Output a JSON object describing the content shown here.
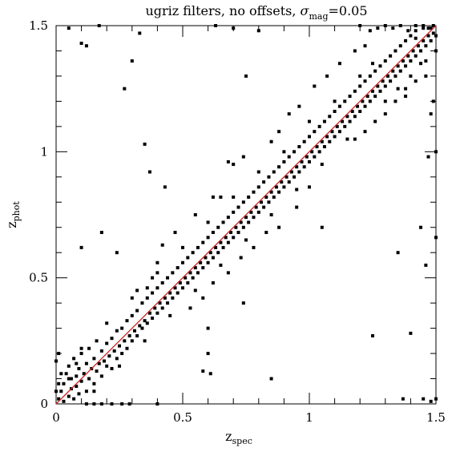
{
  "chart_data": {
    "type": "scatter",
    "title": {
      "prefix": "ugriz filters, no offsets, ",
      "sigma": "σ",
      "sigma_sub": "mag",
      "suffix": "=0.05"
    },
    "xlabel": {
      "main": "z",
      "sub": "spec"
    },
    "ylabel": {
      "main": "z",
      "sub": "phot"
    },
    "xlim": [
      0,
      1.5
    ],
    "ylim": [
      0,
      1.5
    ],
    "x_ticks": [
      {
        "value": 0,
        "label": "0"
      },
      {
        "value": 0.5,
        "label": "0.5"
      },
      {
        "value": 1,
        "label": "1"
      },
      {
        "value": 1.5,
        "label": "1.5"
      }
    ],
    "y_ticks": [
      {
        "value": 0,
        "label": "0"
      },
      {
        "value": 0.5,
        "label": "0.5"
      },
      {
        "value": 1,
        "label": "1"
      },
      {
        "value": 1.5,
        "label": "1.5"
      }
    ],
    "minor_tick_step": 0.1,
    "grid": false,
    "reference_line": {
      "from": [
        0,
        0
      ],
      "to": [
        1.5,
        1.5
      ],
      "color": "#cc2222"
    },
    "marker_color": "#000000",
    "points": [
      [
        0.01,
        0.02
      ],
      [
        0.02,
        0.05
      ],
      [
        0.03,
        0.01
      ],
      [
        0.03,
        0.08
      ],
      [
        0.04,
        0.12
      ],
      [
        0.05,
        0.03
      ],
      [
        0.05,
        0.15
      ],
      [
        0.06,
        0.06
      ],
      [
        0.06,
        0.1
      ],
      [
        0.07,
        0.02
      ],
      [
        0.07,
        0.18
      ],
      [
        0.08,
        0.07
      ],
      [
        0.08,
        0.11
      ],
      [
        0.09,
        0.04
      ],
      [
        0.09,
        0.14
      ],
      [
        0.1,
        0.09
      ],
      [
        0.1,
        0.2
      ],
      [
        0.11,
        0.12
      ],
      [
        0.12,
        0.05
      ],
      [
        0.12,
        0.16
      ],
      [
        0.13,
        0.1
      ],
      [
        0.13,
        0.22
      ],
      [
        0.14,
        0.14
      ],
      [
        0.15,
        0.08
      ],
      [
        0.15,
        0.18
      ],
      [
        0.16,
        0.13
      ],
      [
        0.16,
        0.25
      ],
      [
        0.17,
        0.16
      ],
      [
        0.18,
        0.11
      ],
      [
        0.18,
        0.21
      ],
      [
        0.19,
        0.17
      ],
      [
        0.2,
        0.15
      ],
      [
        0.2,
        0.24
      ],
      [
        0.21,
        0.19
      ],
      [
        0.22,
        0.14
      ],
      [
        0.22,
        0.26
      ],
      [
        0.23,
        0.21
      ],
      [
        0.24,
        0.18
      ],
      [
        0.24,
        0.29
      ],
      [
        0.25,
        0.23
      ],
      [
        0.26,
        0.2
      ],
      [
        0.26,
        0.3
      ],
      [
        0.27,
        0.25
      ],
      [
        0.28,
        0.22
      ],
      [
        0.28,
        0.33
      ],
      [
        0.29,
        0.27
      ],
      [
        0.3,
        0.25
      ],
      [
        0.3,
        0.35
      ],
      [
        0.31,
        0.29
      ],
      [
        0.32,
        0.27
      ],
      [
        0.32,
        0.37
      ],
      [
        0.33,
        0.31
      ],
      [
        0.34,
        0.3
      ],
      [
        0.34,
        0.4
      ],
      [
        0.35,
        0.33
      ],
      [
        0.36,
        0.32
      ],
      [
        0.36,
        0.42
      ],
      [
        0.37,
        0.36
      ],
      [
        0.38,
        0.34
      ],
      [
        0.38,
        0.44
      ],
      [
        0.39,
        0.38
      ],
      [
        0.4,
        0.36
      ],
      [
        0.4,
        0.46
      ],
      [
        0.41,
        0.4
      ],
      [
        0.42,
        0.38
      ],
      [
        0.42,
        0.48
      ],
      [
        0.43,
        0.42
      ],
      [
        0.44,
        0.4
      ],
      [
        0.44,
        0.5
      ],
      [
        0.45,
        0.44
      ],
      [
        0.46,
        0.42
      ],
      [
        0.46,
        0.52
      ],
      [
        0.47,
        0.46
      ],
      [
        0.48,
        0.44
      ],
      [
        0.48,
        0.54
      ],
      [
        0.49,
        0.48
      ],
      [
        0.5,
        0.46
      ],
      [
        0.5,
        0.56
      ],
      [
        0.51,
        0.5
      ],
      [
        0.52,
        0.48
      ],
      [
        0.52,
        0.58
      ],
      [
        0.53,
        0.52
      ],
      [
        0.54,
        0.5
      ],
      [
        0.54,
        0.6
      ],
      [
        0.55,
        0.54
      ],
      [
        0.56,
        0.52
      ],
      [
        0.56,
        0.62
      ],
      [
        0.57,
        0.56
      ],
      [
        0.58,
        0.54
      ],
      [
        0.58,
        0.64
      ],
      [
        0.59,
        0.58
      ],
      [
        0.6,
        0.56
      ],
      [
        0.6,
        0.66
      ],
      [
        0.61,
        0.6
      ],
      [
        0.62,
        0.58
      ],
      [
        0.62,
        0.68
      ],
      [
        0.63,
        0.62
      ],
      [
        0.64,
        0.6
      ],
      [
        0.64,
        0.7
      ],
      [
        0.65,
        0.64
      ],
      [
        0.66,
        0.62
      ],
      [
        0.66,
        0.72
      ],
      [
        0.67,
        0.66
      ],
      [
        0.68,
        0.64
      ],
      [
        0.68,
        0.74
      ],
      [
        0.69,
        0.68
      ],
      [
        0.7,
        0.66
      ],
      [
        0.7,
        0.76
      ],
      [
        0.71,
        0.7
      ],
      [
        0.72,
        0.68
      ],
      [
        0.72,
        0.78
      ],
      [
        0.73,
        0.72
      ],
      [
        0.74,
        0.7
      ],
      [
        0.74,
        0.8
      ],
      [
        0.75,
        0.74
      ],
      [
        0.76,
        0.72
      ],
      [
        0.76,
        0.82
      ],
      [
        0.77,
        0.76
      ],
      [
        0.78,
        0.74
      ],
      [
        0.78,
        0.84
      ],
      [
        0.79,
        0.78
      ],
      [
        0.8,
        0.76
      ],
      [
        0.8,
        0.86
      ],
      [
        0.81,
        0.8
      ],
      [
        0.82,
        0.78
      ],
      [
        0.82,
        0.88
      ],
      [
        0.83,
        0.82
      ],
      [
        0.84,
        0.8
      ],
      [
        0.84,
        0.9
      ],
      [
        0.85,
        0.84
      ],
      [
        0.86,
        0.82
      ],
      [
        0.86,
        0.92
      ],
      [
        0.87,
        0.86
      ],
      [
        0.88,
        0.84
      ],
      [
        0.88,
        0.94
      ],
      [
        0.89,
        0.88
      ],
      [
        0.9,
        0.86
      ],
      [
        0.9,
        0.96
      ],
      [
        0.91,
        0.9
      ],
      [
        0.92,
        0.88
      ],
      [
        0.92,
        0.98
      ],
      [
        0.93,
        0.92
      ],
      [
        0.94,
        0.9
      ],
      [
        0.94,
        1.0
      ],
      [
        0.95,
        0.94
      ],
      [
        0.96,
        0.92
      ],
      [
        0.96,
        1.02
      ],
      [
        0.97,
        0.96
      ],
      [
        0.98,
        0.94
      ],
      [
        0.98,
        1.04
      ],
      [
        0.99,
        0.98
      ],
      [
        1.0,
        0.96
      ],
      [
        1.0,
        1.06
      ],
      [
        1.01,
        1.0
      ],
      [
        1.02,
        0.98
      ],
      [
        1.02,
        1.08
      ],
      [
        1.03,
        1.02
      ],
      [
        1.04,
        1.0
      ],
      [
        1.04,
        1.1
      ],
      [
        1.05,
        1.04
      ],
      [
        1.06,
        1.02
      ],
      [
        1.06,
        1.12
      ],
      [
        1.07,
        1.06
      ],
      [
        1.08,
        1.04
      ],
      [
        1.08,
        1.14
      ],
      [
        1.09,
        1.08
      ],
      [
        1.1,
        1.06
      ],
      [
        1.1,
        1.16
      ],
      [
        1.11,
        1.1
      ],
      [
        1.12,
        1.08
      ],
      [
        1.12,
        1.18
      ],
      [
        1.13,
        1.12
      ],
      [
        1.14,
        1.1
      ],
      [
        1.14,
        1.2
      ],
      [
        1.15,
        1.14
      ],
      [
        1.16,
        1.12
      ],
      [
        1.16,
        1.22
      ],
      [
        1.17,
        1.16
      ],
      [
        1.18,
        1.14
      ],
      [
        1.18,
        1.24
      ],
      [
        1.19,
        1.18
      ],
      [
        1.2,
        1.16
      ],
      [
        1.2,
        1.26
      ],
      [
        1.21,
        1.2
      ],
      [
        1.22,
        1.18
      ],
      [
        1.22,
        1.28
      ],
      [
        1.23,
        1.22
      ],
      [
        1.24,
        1.2
      ],
      [
        1.24,
        1.3
      ],
      [
        1.25,
        1.24
      ],
      [
        1.26,
        1.22
      ],
      [
        1.26,
        1.32
      ],
      [
        1.27,
        1.26
      ],
      [
        1.28,
        1.24
      ],
      [
        1.28,
        1.34
      ],
      [
        1.29,
        1.28
      ],
      [
        1.3,
        1.26
      ],
      [
        1.3,
        1.36
      ],
      [
        1.31,
        1.3
      ],
      [
        1.32,
        1.28
      ],
      [
        1.32,
        1.38
      ],
      [
        1.33,
        1.32
      ],
      [
        1.34,
        1.3
      ],
      [
        1.34,
        1.4
      ],
      [
        1.35,
        1.34
      ],
      [
        1.36,
        1.32
      ],
      [
        1.36,
        1.42
      ],
      [
        1.37,
        1.36
      ],
      [
        1.38,
        1.34
      ],
      [
        1.38,
        1.44
      ],
      [
        1.39,
        1.38
      ],
      [
        1.4,
        1.36
      ],
      [
        1.4,
        1.46
      ],
      [
        1.41,
        1.4
      ],
      [
        1.42,
        1.38
      ],
      [
        1.42,
        1.48
      ],
      [
        1.43,
        1.42
      ],
      [
        1.44,
        1.4
      ],
      [
        1.45,
        1.44
      ],
      [
        1.46,
        1.42
      ],
      [
        1.47,
        1.46
      ],
      [
        1.48,
        1.44
      ],
      [
        1.48,
        1.49
      ],
      [
        1.49,
        1.47
      ],
      [
        1.45,
        1.49
      ],
      [
        1.42,
        1.45
      ],
      [
        1.38,
        1.25
      ],
      [
        1.4,
        1.3
      ],
      [
        1.44,
        1.35
      ],
      [
        1.46,
        1.3
      ],
      [
        1.35,
        1.25
      ],
      [
        1.3,
        1.2
      ],
      [
        1.25,
        1.35
      ],
      [
        1.2,
        1.3
      ],
      [
        1.15,
        1.05
      ],
      [
        1.1,
        1.2
      ],
      [
        1.05,
        0.95
      ],
      [
        1.0,
        1.12
      ],
      [
        0.95,
        0.85
      ],
      [
        0.9,
        1.0
      ],
      [
        0.85,
        0.75
      ],
      [
        0.8,
        0.92
      ],
      [
        0.75,
        0.65
      ],
      [
        0.7,
        0.82
      ],
      [
        0.65,
        0.55
      ],
      [
        0.6,
        0.72
      ],
      [
        0.55,
        0.45
      ],
      [
        0.5,
        0.62
      ],
      [
        0.45,
        0.35
      ],
      [
        0.4,
        0.52
      ],
      [
        0.35,
        0.25
      ],
      [
        0.3,
        0.42
      ],
      [
        0.25,
        0.15
      ],
      [
        0.2,
        0.32
      ],
      [
        0.15,
        0.05
      ],
      [
        0.1,
        0.22
      ],
      [
        0.08,
        0.16
      ],
      [
        0.05,
        0.1
      ],
      [
        0.02,
        0.12
      ],
      [
        0.01,
        0.08
      ],
      [
        0.0,
        0.17
      ],
      [
        0.0,
        0.05
      ],
      [
        0.01,
        0.2
      ],
      [
        0.12,
        0.0
      ],
      [
        0.15,
        0.0
      ],
      [
        0.18,
        0.0
      ],
      [
        0.22,
        0.0
      ],
      [
        0.26,
        0.0
      ],
      [
        0.29,
        0.0
      ],
      [
        0.4,
        0.0
      ],
      [
        0.05,
        1.49
      ],
      [
        0.1,
        1.43
      ],
      [
        0.12,
        1.42
      ],
      [
        0.17,
        1.5
      ],
      [
        0.33,
        1.47
      ],
      [
        0.3,
        1.36
      ],
      [
        0.27,
        1.25
      ],
      [
        0.35,
        1.03
      ],
      [
        0.63,
        1.5
      ],
      [
        0.7,
        1.49
      ],
      [
        0.8,
        1.48
      ],
      [
        0.75,
        1.3
      ],
      [
        1.2,
        1.5
      ],
      [
        1.24,
        1.48
      ],
      [
        1.27,
        1.49
      ],
      [
        1.3,
        1.5
      ],
      [
        1.33,
        1.49
      ],
      [
        1.36,
        1.5
      ],
      [
        1.39,
        1.48
      ],
      [
        1.42,
        1.5
      ],
      [
        1.45,
        1.5
      ],
      [
        1.47,
        1.49
      ],
      [
        1.49,
        1.5
      ],
      [
        1.5,
        1.46
      ],
      [
        1.5,
        1.4
      ],
      [
        1.49,
        1.2
      ],
      [
        1.48,
        1.15
      ],
      [
        1.5,
        1.0
      ],
      [
        1.47,
        0.98
      ],
      [
        1.44,
        0.7
      ],
      [
        1.46,
        0.55
      ],
      [
        1.5,
        0.66
      ],
      [
        1.4,
        0.28
      ],
      [
        1.25,
        0.27
      ],
      [
        1.05,
        0.7
      ],
      [
        0.85,
        0.1
      ],
      [
        1.35,
        0.6
      ],
      [
        1.37,
        0.02
      ],
      [
        1.45,
        0.02
      ],
      [
        1.48,
        0.01
      ],
      [
        1.5,
        0.02
      ],
      [
        0.1,
        0.62
      ],
      [
        0.18,
        0.68
      ],
      [
        0.24,
        0.6
      ],
      [
        0.36,
        0.46
      ],
      [
        0.6,
        0.3
      ],
      [
        0.74,
        0.4
      ],
      [
        0.6,
        0.2
      ],
      [
        0.58,
        0.13
      ],
      [
        0.61,
        0.12
      ],
      [
        0.37,
        0.92
      ],
      [
        0.43,
        0.86
      ],
      [
        0.65,
        0.82
      ],
      [
        0.62,
        0.82
      ],
      [
        0.55,
        0.75
      ],
      [
        0.47,
        0.68
      ],
      [
        0.42,
        0.63
      ],
      [
        0.4,
        0.56
      ],
      [
        0.38,
        0.5
      ],
      [
        0.32,
        0.45
      ],
      [
        0.7,
        0.95
      ],
      [
        0.68,
        0.96
      ],
      [
        0.74,
        0.98
      ],
      [
        0.85,
        1.04
      ],
      [
        0.88,
        1.08
      ],
      [
        0.92,
        1.15
      ],
      [
        0.96,
        1.18
      ],
      [
        1.02,
        1.26
      ],
      [
        1.07,
        1.3
      ],
      [
        1.12,
        1.35
      ],
      [
        1.0,
        0.86
      ],
      [
        0.95,
        0.78
      ],
      [
        0.88,
        0.7
      ],
      [
        0.83,
        0.68
      ],
      [
        0.78,
        0.62
      ],
      [
        0.73,
        0.58
      ],
      [
        0.68,
        0.52
      ],
      [
        0.62,
        0.48
      ],
      [
        0.58,
        0.42
      ],
      [
        0.53,
        0.38
      ],
      [
        1.18,
        1.05
      ],
      [
        1.22,
        1.08
      ],
      [
        1.26,
        1.12
      ],
      [
        1.3,
        1.15
      ],
      [
        1.34,
        1.2
      ],
      [
        1.38,
        1.22
      ],
      [
        1.42,
        1.28
      ],
      [
        1.46,
        1.36
      ],
      [
        1.18,
        1.4
      ],
      [
        1.22,
        1.42
      ]
    ]
  }
}
